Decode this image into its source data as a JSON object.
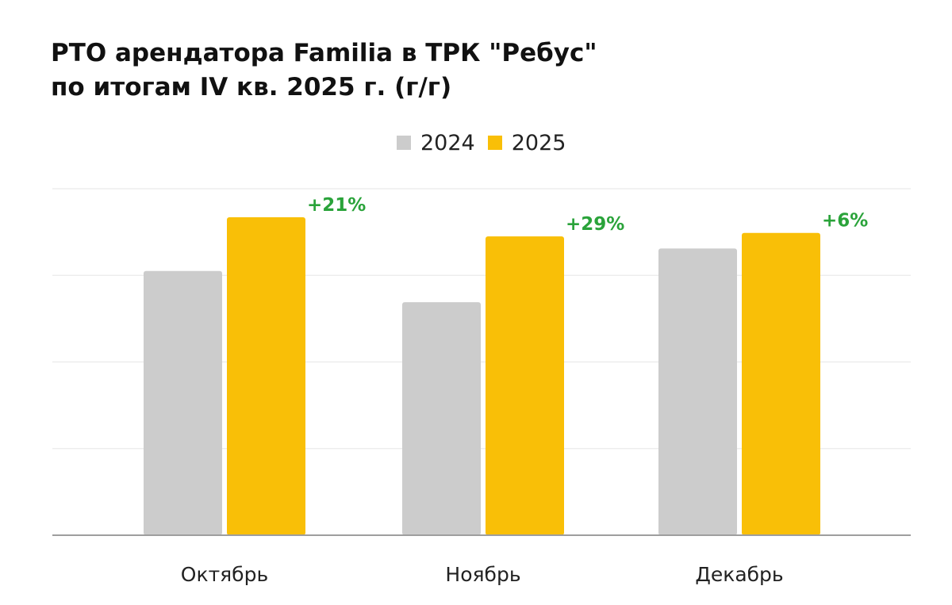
{
  "chart_data": {
    "type": "bar",
    "title_line1": "РТО арендатора Familia в ТРК \"Ребус\"",
    "title_line2": "по итогам IV кв. 2025 г. (г/г)",
    "categories": [
      "Октябрь",
      "Ноябрь",
      "Декабрь"
    ],
    "series": [
      {
        "name": "2024",
        "color": "#cccccc",
        "values": [
          3.05,
          2.69,
          3.31
        ]
      },
      {
        "name": "2025",
        "color": "#f9bf07",
        "values": [
          3.67,
          3.45,
          3.49
        ]
      }
    ],
    "annotations": [
      "+21%",
      "+29%",
      "+6%"
    ],
    "annotation_color": "#2aa33a",
    "ylim": [
      0,
      4
    ],
    "grid": true,
    "y_ticks_shown": false,
    "legend_position": "top-center"
  }
}
